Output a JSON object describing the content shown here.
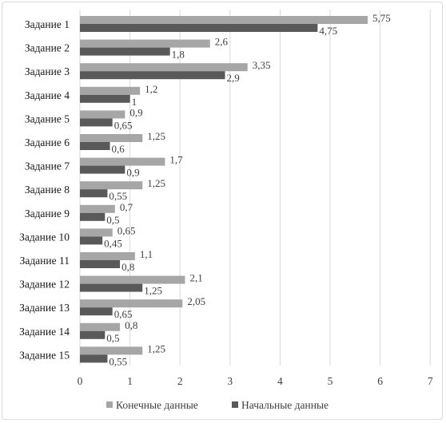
{
  "chart_data": {
    "type": "bar",
    "orientation": "horizontal",
    "categories": [
      "Задание 1",
      "Задание 2",
      "Задание 3",
      "Задание 4",
      "Задание 5",
      "Задание 6",
      "Задание 7",
      "Задание 8",
      "Задание 9",
      "Задание 10",
      "Задание 11",
      "Задание 12",
      "Задание 13",
      "Задание  14",
      "Задание 15"
    ],
    "series": [
      {
        "name": "Конечные данные",
        "color": "#a6a6a6",
        "values": [
          5.75,
          2.6,
          3.35,
          1.2,
          0.9,
          1.25,
          1.7,
          1.25,
          0.7,
          0.65,
          1.1,
          2.1,
          2.05,
          0.8,
          1.25
        ],
        "labels": [
          "5,75",
          "2,6",
          "3,35",
          "1,2",
          "0,9",
          "1,25",
          "1,7",
          "1,25",
          "0,7",
          "0,65",
          "1,1",
          "2,1",
          "2,05",
          "0,8",
          "1,25"
        ]
      },
      {
        "name": "Начальные данные",
        "color": "#595959",
        "values": [
          4.75,
          1.8,
          2.9,
          1,
          0.65,
          0.6,
          0.9,
          0.55,
          0.5,
          0.45,
          0.8,
          1.25,
          0.65,
          0.5,
          0.55
        ],
        "labels": [
          "4,75",
          "1,8",
          "2,9",
          "1",
          "0,65",
          "0,6",
          "0,9",
          "0,55",
          "0,5",
          "0,45",
          "0,8",
          "1,25",
          "0,65",
          "0,5",
          "0,55"
        ]
      }
    ],
    "xlim": [
      0,
      7
    ],
    "xticks": [
      "0",
      "1",
      "2",
      "3",
      "4",
      "5",
      "6",
      "7"
    ],
    "grid": "vertical",
    "legend": "bottom"
  }
}
